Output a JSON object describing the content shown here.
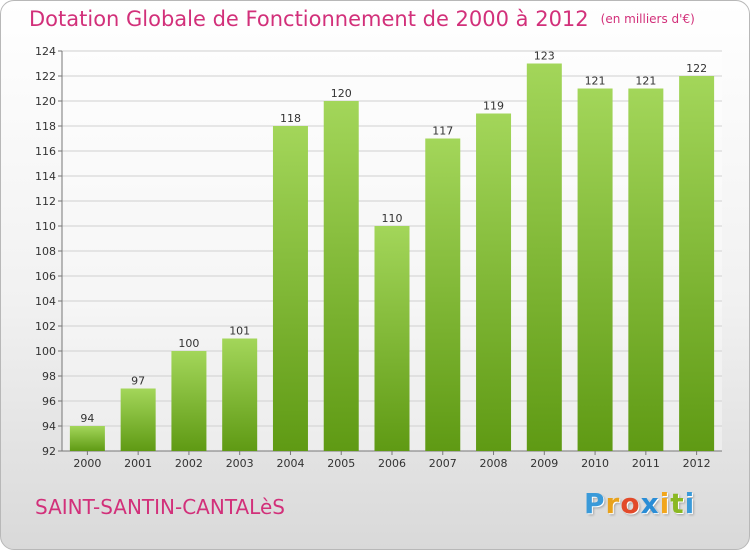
{
  "title": "Dotation Globale de Fonctionnement de 2000 à 2012",
  "unit": "(en milliers d'€)",
  "commune": "SAINT-SANTIN-CANTALèS",
  "brand": {
    "letters": [
      "P",
      "r",
      "o",
      "x",
      "i",
      "t",
      "i"
    ],
    "colors": [
      "#3a9ad9",
      "#e8a21c",
      "#e24a2a",
      "#2a8dd6",
      "#f2a61c",
      "#8ab823",
      "#3a9ad9"
    ]
  },
  "colors": {
    "title": "#d2307a",
    "bar_light": "#a3d65a",
    "bar_dark": "#5f9a14",
    "grid": "#d0d0d0"
  },
  "chart_data": {
    "type": "bar",
    "categories": [
      "2000",
      "2001",
      "2002",
      "2003",
      "2004",
      "2005",
      "2006",
      "2007",
      "2008",
      "2009",
      "2010",
      "2011",
      "2012"
    ],
    "values": [
      94,
      97,
      100,
      101,
      118,
      120,
      110,
      117,
      119,
      123,
      121,
      121,
      122
    ],
    "ylim": [
      92,
      124
    ],
    "yticks": [
      92,
      94,
      96,
      98,
      100,
      102,
      104,
      106,
      108,
      110,
      112,
      114,
      116,
      118,
      120,
      122,
      124
    ],
    "grid": true,
    "title": "Dotation Globale de Fonctionnement de 2000 à 2012"
  }
}
